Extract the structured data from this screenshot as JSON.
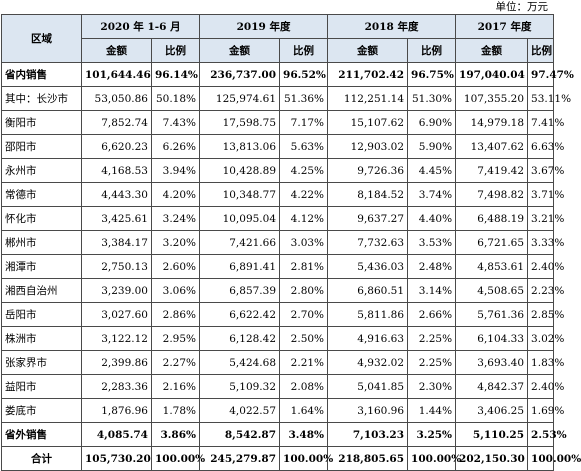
{
  "unit_label": "单位：万元",
  "header": {
    "region": "区域",
    "years": [
      "2020 年 1-6 月",
      "2019 年度",
      "2018 年度",
      "2017 年度"
    ],
    "amount": "金额",
    "ratio": "比例"
  },
  "rows": [
    {
      "region": "省内销售",
      "bold": true,
      "values": [
        "101,644.46",
        "96.14%",
        "236,737.00",
        "96.52%",
        "211,702.42",
        "96.75%",
        "197,040.04",
        "97.47%"
      ]
    },
    {
      "region": "其中：长沙市",
      "bold": false,
      "values": [
        "53,050.86",
        "50.18%",
        "125,974.61",
        "51.36%",
        "112,251.14",
        "51.30%",
        "107,355.20",
        "53.11%"
      ]
    },
    {
      "region": "衡阳市",
      "bold": false,
      "values": [
        "7,852.74",
        "7.43%",
        "17,598.75",
        "7.17%",
        "15,107.62",
        "6.90%",
        "14,979.18",
        "7.41%"
      ]
    },
    {
      "region": "邵阳市",
      "bold": false,
      "values": [
        "6,620.23",
        "6.26%",
        "13,813.06",
        "5.63%",
        "12,903.02",
        "5.90%",
        "13,407.62",
        "6.63%"
      ]
    },
    {
      "region": "永州市",
      "bold": false,
      "values": [
        "4,168.53",
        "3.94%",
        "10,428.89",
        "4.25%",
        "9,726.36",
        "4.45%",
        "7,419.42",
        "3.67%"
      ]
    },
    {
      "region": "常德市",
      "bold": false,
      "values": [
        "4,443.30",
        "4.20%",
        "10,348.77",
        "4.22%",
        "8,184.52",
        "3.74%",
        "7,498.82",
        "3.71%"
      ]
    },
    {
      "region": "怀化市",
      "bold": false,
      "values": [
        "3,425.61",
        "3.24%",
        "10,095.04",
        "4.12%",
        "9,637.27",
        "4.40%",
        "6,488.19",
        "3.21%"
      ]
    },
    {
      "region": "郴州市",
      "bold": false,
      "values": [
        "3,384.17",
        "3.20%",
        "7,421.66",
        "3.03%",
        "7,732.63",
        "3.53%",
        "6,721.65",
        "3.33%"
      ]
    },
    {
      "region": "湘潭市",
      "bold": false,
      "values": [
        "2,750.13",
        "2.60%",
        "6,891.41",
        "2.81%",
        "5,436.03",
        "2.48%",
        "4,853.61",
        "2.40%"
      ]
    },
    {
      "region": "湘西自治州",
      "bold": false,
      "values": [
        "3,239.00",
        "3.06%",
        "6,857.39",
        "2.80%",
        "6,860.51",
        "3.14%",
        "4,508.65",
        "2.23%"
      ]
    },
    {
      "region": "岳阳市",
      "bold": false,
      "values": [
        "3,027.60",
        "2.86%",
        "6,622.42",
        "2.70%",
        "5,811.86",
        "2.66%",
        "5,761.36",
        "2.85%"
      ]
    },
    {
      "region": "株洲市",
      "bold": false,
      "values": [
        "3,122.12",
        "2.95%",
        "6,128.42",
        "2.50%",
        "4,916.63",
        "2.25%",
        "6,104.33",
        "3.02%"
      ]
    },
    {
      "region": "张家界市",
      "bold": false,
      "values": [
        "2,399.86",
        "2.27%",
        "5,424.68",
        "2.21%",
        "4,932.02",
        "2.25%",
        "3,693.40",
        "1.83%"
      ]
    },
    {
      "region": "益阳市",
      "bold": false,
      "values": [
        "2,283.36",
        "2.16%",
        "5,109.32",
        "2.08%",
        "5,041.85",
        "2.30%",
        "4,842.37",
        "2.40%"
      ]
    },
    {
      "region": "娄底市",
      "bold": false,
      "values": [
        "1,876.96",
        "1.78%",
        "4,022.57",
        "1.64%",
        "3,160.96",
        "1.44%",
        "3,406.25",
        "1.69%"
      ]
    },
    {
      "region": "省外销售",
      "bold": true,
      "values": [
        "4,085.74",
        "3.86%",
        "8,542.87",
        "3.48%",
        "7,103.23",
        "3.25%",
        "5,110.25",
        "2.53%"
      ]
    },
    {
      "region": "合计",
      "bold": true,
      "total": true,
      "values": [
        "105,730.20",
        "100.00%",
        "245,279.87",
        "100.00%",
        "218,805.65",
        "100.00%",
        "202,150.30",
        "100.00%"
      ]
    }
  ]
}
